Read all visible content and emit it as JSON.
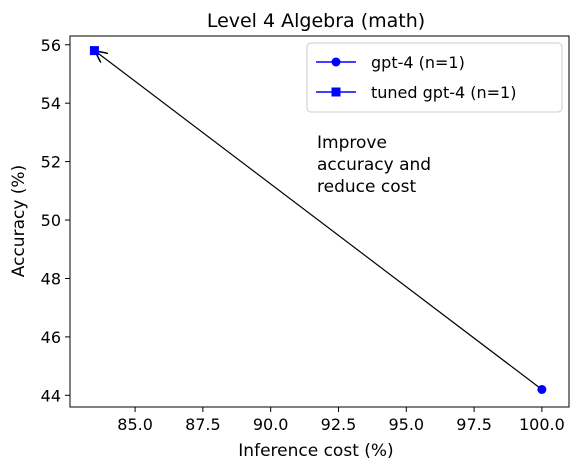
{
  "chart_data": {
    "type": "scatter",
    "title": "Level 4 Algebra (math)",
    "xlabel": "Inference cost (%)",
    "ylabel": "Accuracy (%)",
    "xlim": [
      82.6,
      101.0
    ],
    "ylim": [
      43.6,
      56.3
    ],
    "xticks": [
      "85.0",
      "87.5",
      "90.0",
      "92.5",
      "95.0",
      "97.5",
      "100.0"
    ],
    "yticks": [
      "44",
      "46",
      "48",
      "50",
      "52",
      "54",
      "56"
    ],
    "series": [
      {
        "name": "gpt-4 (n=1)",
        "marker": "circle",
        "color": "#0000ff",
        "points": [
          {
            "x": 100.0,
            "y": 44.2
          }
        ]
      },
      {
        "name": "tuned gpt-4 (n=1)",
        "marker": "square",
        "color": "#0000ff",
        "points": [
          {
            "x": 83.5,
            "y": 55.8
          }
        ]
      }
    ],
    "annotation": {
      "lines": [
        "Improve",
        "accuracy and",
        "reduce cost"
      ],
      "arrow_from": {
        "x": 100.0,
        "y": 44.2
      },
      "arrow_to": {
        "x": 83.5,
        "y": 55.8
      }
    },
    "legend_position": "top-right",
    "grid": false
  }
}
